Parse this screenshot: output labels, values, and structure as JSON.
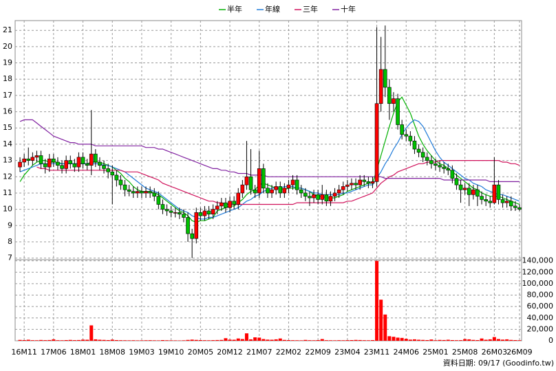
{
  "chart_data": {
    "type": "candlestick",
    "categories": [
      null,
      "16M11",
      null,
      null,
      null,
      null,
      null,
      null,
      "17M06",
      null,
      null,
      null,
      null,
      null,
      null,
      "18M01",
      null,
      null,
      null,
      null,
      null,
      null,
      "18M08",
      null,
      null,
      null,
      null,
      null,
      null,
      "19M03",
      null,
      null,
      null,
      null,
      null,
      null,
      "19M10",
      null,
      null,
      null,
      null,
      null,
      null,
      "20M05",
      null,
      null,
      null,
      null,
      null,
      null,
      "20M12",
      null,
      null,
      null,
      null,
      null,
      null,
      "21M07",
      null,
      null,
      null,
      null,
      null,
      null,
      "22M02",
      null,
      null,
      null,
      null,
      null,
      null,
      "22M09",
      null,
      null,
      null,
      null,
      null,
      null,
      "23M04",
      null,
      null,
      null,
      null,
      null,
      null,
      "23M11",
      null,
      null,
      null,
      null,
      null,
      null,
      "24M06",
      null,
      null,
      null,
      null,
      null,
      null,
      "25M01",
      null,
      null,
      null,
      null,
      null,
      null,
      "25M08",
      null,
      null,
      null,
      null,
      null,
      null,
      "26M03",
      null,
      null,
      null,
      null,
      null,
      "26M09"
    ],
    "open": [
      12.6,
      12.9,
      13.1,
      13.0,
      13.2,
      13.3,
      12.8,
      12.6,
      13.1,
      12.9,
      12.7,
      12.5,
      13.0,
      12.8,
      12.6,
      13.2,
      12.8,
      12.7,
      13.4,
      12.9,
      12.7,
      12.5,
      12.3,
      12.1,
      11.8,
      11.5,
      11.2,
      11.1,
      11.0,
      11.1,
      11.0,
      11.1,
      11.0,
      10.8,
      10.3,
      10.0,
      9.9,
      9.8,
      9.8,
      9.7,
      9.5,
      8.5,
      8.2,
      9.8,
      9.6,
      9.9,
      9.7,
      10.0,
      10.2,
      10.4,
      10.1,
      10.5,
      10.3,
      11.0,
      11.5,
      12.0,
      11.2,
      11.0,
      12.5,
      11.3,
      11.0,
      11.2,
      11.4,
      11.0,
      11.3,
      11.5,
      11.8,
      11.2,
      11.0,
      10.8,
      10.7,
      10.9,
      10.6,
      10.9,
      10.5,
      10.8,
      11.0,
      11.2,
      11.4,
      11.5,
      11.6,
      11.5,
      11.8,
      11.7,
      11.6,
      11.7,
      16.5,
      18.6,
      17.5,
      16.5,
      16.8,
      15.2,
      14.6,
      14.5,
      14.2,
      13.7,
      13.5,
      13.2,
      13.0,
      12.8,
      12.7,
      12.6,
      12.5,
      12.4,
      11.9,
      11.5,
      11.2,
      11.3,
      10.9,
      11.2,
      10.8,
      10.6,
      10.5,
      10.4,
      11.5,
      10.6,
      10.4,
      10.5,
      10.2,
      10.1
    ],
    "high": [
      13.2,
      13.4,
      13.8,
      13.5,
      13.6,
      13.6,
      13.1,
      13.4,
      13.4,
      13.2,
      13.0,
      13.3,
      13.3,
      13.1,
      13.5,
      13.5,
      13.1,
      16.1,
      13.7,
      13.2,
      13.0,
      12.8,
      12.7,
      12.4,
      12.1,
      11.8,
      11.5,
      11.4,
      11.4,
      11.4,
      11.4,
      11.4,
      11.3,
      11.1,
      10.6,
      10.3,
      10.2,
      10.1,
      10.1,
      10.0,
      9.8,
      8.8,
      10.1,
      10.1,
      10.2,
      10.2,
      10.3,
      10.5,
      10.7,
      10.7,
      10.8,
      10.8,
      11.3,
      11.8,
      14.2,
      13.7,
      11.5,
      13.6,
      12.8,
      11.6,
      11.5,
      11.7,
      11.7,
      11.6,
      11.8,
      12.1,
      12.1,
      11.5,
      11.3,
      11.1,
      11.2,
      11.2,
      11.5,
      11.2,
      11.1,
      11.3,
      11.5,
      11.7,
      11.8,
      11.9,
      11.9,
      12.1,
      12.1,
      12.0,
      12.0,
      21.2,
      20.6,
      21.3,
      18.0,
      17.2,
      17.1,
      15.5,
      14.9,
      14.8,
      14.5,
      14.0,
      13.8,
      13.5,
      13.3,
      13.1,
      13.0,
      12.9,
      12.8,
      12.7,
      12.2,
      11.8,
      11.6,
      11.6,
      11.5,
      11.5,
      11.1,
      10.9,
      10.8,
      13.2,
      11.8,
      10.9,
      10.8,
      10.8,
      10.5,
      10.3
    ],
    "low": [
      12.3,
      12.6,
      12.7,
      12.7,
      12.9,
      12.5,
      12.2,
      12.3,
      12.6,
      12.4,
      12.2,
      12.2,
      12.5,
      12.3,
      12.3,
      12.5,
      12.4,
      12.1,
      12.6,
      12.4,
      12.2,
      11.9,
      10.3,
      11.4,
      11.2,
      10.8,
      10.8,
      10.7,
      10.7,
      10.7,
      10.7,
      10.7,
      10.5,
      10.0,
      9.7,
      9.6,
      9.5,
      9.5,
      9.4,
      9.2,
      8.0,
      7.0,
      7.9,
      9.3,
      9.3,
      9.4,
      9.4,
      9.7,
      9.9,
      9.8,
      9.8,
      10.0,
      10.0,
      10.7,
      11.2,
      10.9,
      10.7,
      10.7,
      11.0,
      10.7,
      10.7,
      10.9,
      10.7,
      10.7,
      11.0,
      11.2,
      10.9,
      10.7,
      10.5,
      10.2,
      10.4,
      10.3,
      10.3,
      10.2,
      10.2,
      10.5,
      10.7,
      10.9,
      11.1,
      11.2,
      11.2,
      11.2,
      11.4,
      11.3,
      11.3,
      11.4,
      16.0,
      16.9,
      15.5,
      16.0,
      14.9,
      14.3,
      14.2,
      13.9,
      13.4,
      13.2,
      12.9,
      12.7,
      12.5,
      12.4,
      12.3,
      12.2,
      12.1,
      11.6,
      11.2,
      10.4,
      10.9,
      10.2,
      10.6,
      10.2,
      10.3,
      10.2,
      10.1,
      10.3,
      10.3,
      10.1,
      10.1,
      9.9,
      9.9,
      9.9
    ],
    "close": [
      12.9,
      13.1,
      13.0,
      13.2,
      13.3,
      12.8,
      12.6,
      13.1,
      12.9,
      12.7,
      12.5,
      13.0,
      12.8,
      12.6,
      13.2,
      12.8,
      12.7,
      13.4,
      12.9,
      12.7,
      12.5,
      12.3,
      12.1,
      11.8,
      11.5,
      11.2,
      11.1,
      11.0,
      11.1,
      11.0,
      11.1,
      11.0,
      10.8,
      10.3,
      10.0,
      9.9,
      9.8,
      9.8,
      9.7,
      9.5,
      8.5,
      8.2,
      9.8,
      9.6,
      9.9,
      9.7,
      10.0,
      10.2,
      10.4,
      10.1,
      10.5,
      10.3,
      11.0,
      11.5,
      12.0,
      11.2,
      11.0,
      12.5,
      11.3,
      11.0,
      11.2,
      11.4,
      11.0,
      11.3,
      11.5,
      11.8,
      11.2,
      11.0,
      10.8,
      10.7,
      10.9,
      10.6,
      10.9,
      10.5,
      10.8,
      11.0,
      11.2,
      11.4,
      11.5,
      11.6,
      11.5,
      11.8,
      11.7,
      11.6,
      11.7,
      16.5,
      18.6,
      17.5,
      16.5,
      16.8,
      15.2,
      14.6,
      14.5,
      14.2,
      13.7,
      13.5,
      13.2,
      13.0,
      12.8,
      12.7,
      12.6,
      12.5,
      12.4,
      11.9,
      11.5,
      11.2,
      11.3,
      10.9,
      11.2,
      10.8,
      10.6,
      10.5,
      10.4,
      11.5,
      10.6,
      10.4,
      10.5,
      10.2,
      10.1,
      10.0
    ],
    "up_color": "#ff0000",
    "down_color": "#00c000",
    "ylim": [
      6.9,
      21.6
    ],
    "yticks": [
      7,
      8,
      9,
      10,
      11,
      12,
      13,
      14,
      15,
      16,
      17,
      18,
      19,
      20,
      21
    ],
    "grid": true,
    "series": [
      {
        "name": "半年",
        "color": "#00b000",
        "values": [
          11.7,
          12.1,
          12.4,
          12.7,
          12.9,
          13.0,
          13.0,
          12.9,
          12.9,
          12.9,
          12.8,
          12.8,
          12.8,
          12.8,
          12.8,
          12.8,
          12.8,
          12.9,
          12.9,
          12.9,
          12.8,
          12.7,
          12.6,
          12.4,
          12.2,
          11.9,
          11.7,
          11.4,
          11.2,
          11.1,
          11.1,
          11.1,
          11.0,
          10.9,
          10.7,
          10.5,
          10.3,
          10.1,
          9.9,
          9.8,
          9.6,
          9.3,
          9.2,
          9.3,
          9.3,
          9.4,
          9.5,
          9.9,
          10.0,
          10.1,
          10.2,
          10.2,
          10.4,
          10.6,
          10.9,
          11.1,
          11.2,
          11.5,
          11.6,
          11.5,
          11.4,
          11.3,
          11.3,
          11.2,
          11.3,
          11.3,
          11.3,
          11.3,
          11.2,
          11.1,
          10.9,
          10.8,
          10.8,
          10.7,
          10.7,
          10.7,
          10.8,
          10.9,
          11.1,
          11.2,
          11.3,
          11.4,
          11.5,
          11.6,
          11.6,
          12.4,
          13.3,
          14.2,
          15.1,
          15.9,
          16.6,
          16.9,
          16.4,
          15.9,
          15.2,
          14.5,
          14.0,
          13.6,
          13.3,
          13.0,
          12.8,
          12.7,
          12.5,
          12.3,
          12.1,
          11.9,
          11.7,
          11.5,
          11.3,
          11.2,
          11.0,
          10.9,
          10.8,
          10.8,
          10.8,
          10.7,
          10.6,
          10.5,
          10.4,
          10.3
        ]
      },
      {
        "name": "年線",
        "color": "#1e7ad8",
        "values": [
          12.3,
          12.4,
          12.5,
          12.6,
          12.7,
          12.8,
          12.8,
          12.8,
          12.8,
          12.8,
          12.8,
          12.8,
          12.8,
          12.8,
          12.8,
          12.8,
          12.8,
          12.8,
          12.8,
          12.8,
          12.7,
          12.7,
          12.6,
          12.5,
          12.4,
          12.3,
          12.1,
          11.9,
          11.7,
          11.5,
          11.3,
          11.2,
          11.1,
          11.0,
          10.8,
          10.6,
          10.4,
          10.2,
          10.0,
          9.9,
          9.8,
          9.6,
          9.5,
          9.4,
          9.4,
          9.5,
          9.5,
          9.6,
          9.7,
          9.8,
          9.9,
          10.0,
          10.1,
          10.3,
          10.5,
          10.6,
          10.8,
          10.9,
          11.1,
          11.2,
          11.3,
          11.3,
          11.3,
          11.4,
          11.4,
          11.4,
          11.3,
          11.3,
          11.2,
          11.1,
          11.0,
          11.0,
          10.9,
          10.9,
          10.9,
          10.9,
          10.9,
          11.0,
          11.0,
          11.1,
          11.2,
          11.3,
          11.4,
          11.5,
          11.5,
          11.9,
          12.3,
          12.8,
          13.2,
          13.7,
          14.1,
          14.6,
          15.0,
          15.3,
          15.5,
          15.4,
          15.1,
          14.6,
          14.1,
          13.6,
          13.2,
          12.9,
          12.7,
          12.5,
          12.3,
          12.1,
          11.9,
          11.8,
          11.6,
          11.5,
          11.4,
          11.2,
          11.1,
          11.0,
          10.9,
          10.9,
          10.8,
          10.7,
          10.6,
          10.5
        ]
      },
      {
        "name": "三年",
        "color": "#d0105a",
        "values": [
          null,
          null,
          null,
          null,
          12.6,
          12.5,
          12.5,
          12.4,
          12.4,
          12.4,
          12.4,
          12.4,
          12.4,
          12.4,
          12.4,
          12.4,
          12.4,
          12.4,
          12.4,
          12.4,
          12.4,
          12.4,
          12.4,
          12.4,
          12.4,
          12.3,
          12.3,
          12.3,
          12.3,
          12.2,
          12.1,
          12.0,
          11.9,
          11.8,
          11.6,
          11.5,
          11.4,
          11.3,
          11.2,
          11.1,
          11.0,
          10.9,
          10.8,
          10.7,
          10.6,
          10.5,
          10.5,
          10.4,
          10.4,
          10.3,
          10.3,
          10.3,
          10.3,
          10.3,
          10.3,
          10.3,
          10.3,
          10.3,
          10.3,
          10.3,
          10.3,
          10.3,
          10.3,
          10.3,
          10.3,
          10.3,
          10.4,
          10.4,
          10.4,
          10.4,
          10.4,
          10.4,
          10.4,
          10.4,
          10.4,
          10.4,
          10.4,
          10.4,
          10.5,
          10.5,
          10.6,
          10.7,
          10.8,
          10.9,
          11.0,
          11.3,
          11.6,
          11.8,
          12.0,
          12.1,
          12.3,
          12.4,
          12.5,
          12.6,
          12.7,
          12.8,
          12.8,
          12.9,
          12.9,
          12.9,
          13.0,
          13.0,
          13.0,
          13.0,
          13.0,
          13.0,
          13.0,
          13.0,
          13.0,
          13.0,
          13.0,
          13.0,
          13.0,
          13.0,
          13.0,
          12.9,
          12.9,
          12.8,
          12.8,
          12.7
        ]
      },
      {
        "name": "十年",
        "color": "#8020a0",
        "values": [
          15.4,
          15.5,
          15.5,
          15.5,
          15.3,
          15.1,
          14.9,
          14.7,
          14.5,
          14.4,
          14.3,
          14.2,
          14.1,
          14.1,
          14.0,
          14.0,
          14.0,
          14.0,
          13.9,
          13.9,
          13.9,
          13.9,
          13.9,
          13.9,
          13.9,
          13.9,
          13.9,
          13.9,
          13.9,
          13.9,
          13.8,
          13.8,
          13.8,
          13.7,
          13.7,
          13.6,
          13.5,
          13.4,
          13.3,
          13.2,
          13.1,
          13.0,
          12.9,
          12.8,
          12.7,
          12.6,
          12.5,
          12.5,
          12.4,
          12.4,
          12.3,
          12.3,
          12.2,
          12.2,
          12.2,
          12.1,
          12.1,
          12.1,
          12.1,
          12.0,
          12.0,
          12.0,
          12.0,
          12.0,
          12.0,
          12.0,
          12.0,
          12.0,
          12.0,
          12.0,
          12.0,
          12.0,
          12.0,
          12.0,
          12.0,
          12.0,
          12.0,
          12.0,
          12.0,
          12.0,
          12.0,
          12.0,
          12.0,
          12.0,
          12.0,
          12.0,
          12.0,
          11.9,
          11.9,
          11.9,
          11.9,
          11.9,
          11.9,
          11.9,
          11.9,
          11.9,
          11.9,
          11.9,
          11.9,
          11.9,
          11.9,
          11.8,
          11.8,
          11.8,
          11.8,
          11.8,
          11.8,
          11.8,
          11.8,
          11.8,
          11.8,
          11.8,
          11.7,
          11.7,
          11.7,
          11.7,
          11.7,
          11.7,
          11.7,
          11.7
        ]
      }
    ],
    "volume": {
      "color": "#ff0000",
      "values": [
        1500,
        1200,
        1800,
        1000,
        900,
        1400,
        1100,
        1300,
        2500,
        1000,
        900,
        1200,
        1500,
        1100,
        1300,
        2000,
        1800,
        27000,
        2500,
        1800,
        1500,
        1200,
        2000,
        1200,
        1000,
        900,
        800,
        900,
        700,
        800,
        900,
        1000,
        800,
        700,
        1200,
        900,
        800,
        700,
        600,
        800,
        1500,
        2000,
        1500,
        1200,
        1000,
        900,
        1100,
        1300,
        1500,
        4500,
        2000,
        1800,
        4000,
        3000,
        13000,
        2500,
        6000,
        5500,
        3000,
        2000,
        1800,
        2500,
        4000,
        1500,
        1200,
        1000,
        900,
        800,
        1500,
        1000,
        900,
        1200,
        3000,
        1000,
        900,
        800,
        1000,
        900,
        1100,
        1200,
        1500,
        1300,
        1000,
        900,
        1200,
        140000,
        72000,
        46000,
        8000,
        7000,
        5500,
        5000,
        3500,
        2000,
        2500,
        1800,
        1500,
        1200,
        2200,
        1000,
        1500,
        1300,
        1800,
        1200,
        1000,
        1100,
        3000,
        2500,
        1500,
        1200,
        4000,
        1800,
        2500,
        6500,
        3000,
        2000,
        2500,
        1500,
        1200,
        1000
      ],
      "ylim": [
        0,
        142000
      ],
      "yticks": [
        0,
        {
          "value": 20000,
          "label": "20,000"
        },
        {
          "value": 40000,
          "label": "40,000"
        },
        {
          "value": 60000,
          "label": "60,000"
        },
        {
          "value": 80000,
          "label": "80,000"
        },
        {
          "value": 100000,
          "label": "100,000"
        },
        {
          "value": 120000,
          "label": "120,000"
        },
        {
          "value": 140000,
          "label": "140,000"
        }
      ]
    },
    "note": "資料日期: 09/17  (Goodinfo.tw)"
  }
}
